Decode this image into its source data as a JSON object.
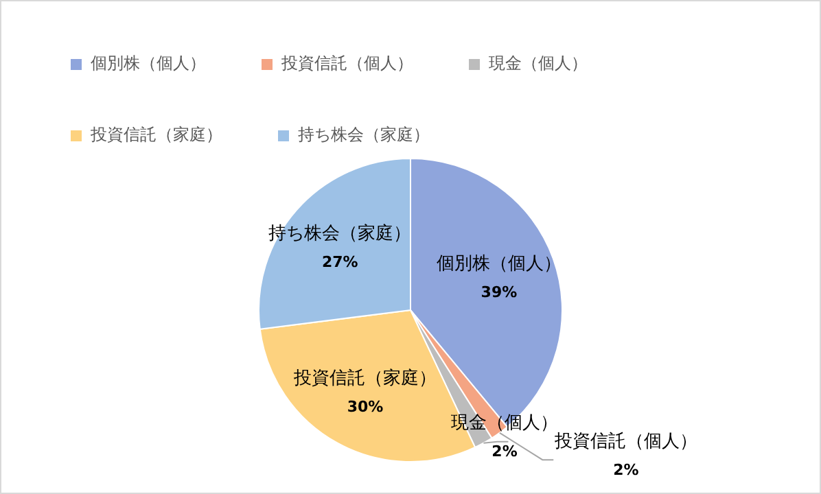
{
  "chart_data": {
    "type": "pie",
    "categories": [
      "個別株（個人）",
      "投資信託（個人）",
      "現金（個人）",
      "投資信託（家庭）",
      "持ち株会（家庭）"
    ],
    "values": [
      39,
      2,
      2,
      30,
      27
    ],
    "colors": [
      "#8fa5dc",
      "#f4a483",
      "#bcbcbc",
      "#fdd27f",
      "#9dc1e6"
    ],
    "value_labels": [
      "39%",
      "2%",
      "2%",
      "30%",
      "27%"
    ],
    "legend": "top left"
  }
}
